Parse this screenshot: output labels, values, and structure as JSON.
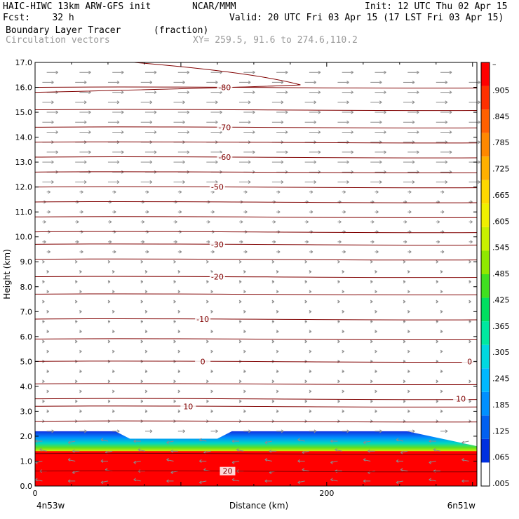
{
  "header": {
    "line1_left": "HAIC-HIWC 13km ARW-GFS init",
    "line1_mid": "NCAR/MMM",
    "line1_right": "Init: 12 UTC Thu 02 Apr 15",
    "line2_left": "Fcst:    32 h",
    "line2_right": "Valid: 20 UTC Fri 03 Apr 15 (17 LST Fri 03 Apr 15)",
    "field": "Boundary Layer Tracer",
    "field_units": "(fraction)",
    "overlay": "Circulation vectors",
    "xy": "XY= 259.5, 91.6 to 274.6,110.2"
  },
  "colors": {
    "contour": "#800000",
    "vector": "#8c8c8c",
    "colorbar": [
      "#ffffff",
      "#0030e0",
      "#0060f0",
      "#0090ff",
      "#00b8ff",
      "#00d8e0",
      "#00e8a0",
      "#00e060",
      "#40e020",
      "#90e800",
      "#c8f000",
      "#f0f000",
      "#ffd800",
      "#ffb000",
      "#ff8800",
      "#ff6000",
      "#ff3000",
      "#ff0000"
    ]
  },
  "chart_data": {
    "type": "heatmap",
    "xlabel": "Distance (km)",
    "ylabel": "Height (km)",
    "xlim": [
      0,
      303
    ],
    "ylim": [
      0.0,
      17.0
    ],
    "x_ticks": [
      0,
      200
    ],
    "y_ticks": [
      "0.0",
      "1.0",
      "2.0",
      "3.0",
      "4.0",
      "5.0",
      "6.0",
      "7.0",
      "8.0",
      "9.0",
      "10.0",
      "11.0",
      "12.0",
      "13.0",
      "14.0",
      "15.0",
      "16.0",
      "17.0"
    ],
    "x_end_labels": {
      "left": "4n53w",
      "right": "6n51w"
    },
    "colorbar_labels": [
      "–",
      ".905",
      ".845",
      ".785",
      ".725",
      ".665",
      ".605",
      ".545",
      ".485",
      ".425",
      ".365",
      ".305",
      ".245",
      ".185",
      ".125",
      ".065",
      ".005"
    ],
    "tracer_top_km": [
      [
        0,
        2.2
      ],
      [
        55,
        2.2
      ],
      [
        65,
        1.9
      ],
      [
        125,
        1.9
      ],
      [
        135,
        2.2
      ],
      [
        255,
        2.2
      ],
      [
        275,
        1.95
      ],
      [
        303,
        1.6
      ]
    ],
    "temperature_contours": [
      {
        "label": "-80",
        "label_x": 130,
        "height_km": 16.0
      },
      {
        "label": "-70",
        "label_x": 130,
        "height_km": 14.4
      },
      {
        "label": "-60",
        "label_x": 130,
        "height_km": 13.2
      },
      {
        "label": "-50",
        "label_x": 125,
        "height_km": 12.0
      },
      {
        "label": "-30",
        "label_x": 125,
        "height_km": 9.7
      },
      {
        "label": "-20",
        "label_x": 125,
        "height_km": 8.4
      },
      {
        "label": "-10",
        "label_x": 115,
        "height_km": 6.7
      },
      {
        "label": "0",
        "label_x": 115,
        "height_km": 5.0
      },
      {
        "label": "0",
        "label_x": 298,
        "height_km": 5.0
      },
      {
        "label": "10",
        "label_x": 105,
        "height_km": 3.2
      },
      {
        "label": "10",
        "label_x": 292,
        "height_km": 3.5
      },
      {
        "label": "20",
        "label_x": 132,
        "height_km": 0.6
      }
    ],
    "extra_contour_heights_km": [
      15.1,
      13.8,
      12.6,
      11.4,
      10.8,
      10.2,
      9.1,
      7.7,
      5.9,
      4.1,
      2.6,
      1.3
    ]
  }
}
